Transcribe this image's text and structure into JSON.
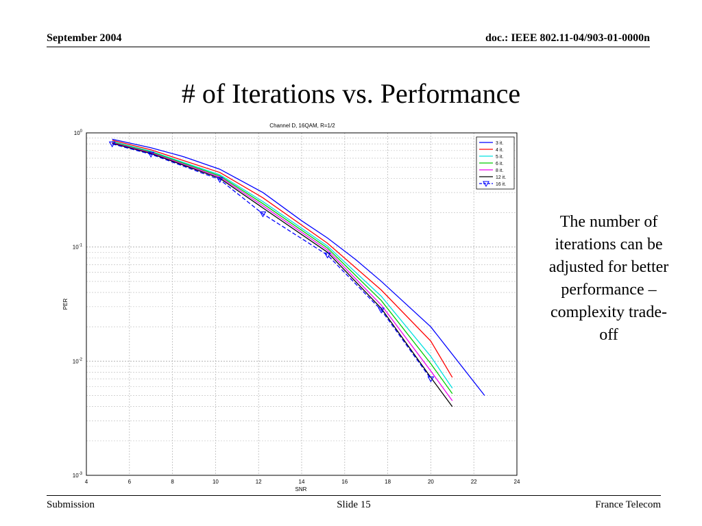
{
  "header": {
    "date": "September 2004",
    "doc": "doc.: IEEE 802.11-04/903-01-0000n"
  },
  "slide": {
    "title": "# of Iterations vs. Performance",
    "note": "The number of iterations can be adjusted for better performance – complexity trade-off"
  },
  "footer": {
    "left": "Submission",
    "center": "Slide 15",
    "right": "France Telecom"
  },
  "chart_data": {
    "type": "line",
    "title": "Channel D, 16QAM, R=1/2",
    "xlabel": "SNR",
    "ylabel": "PER",
    "xlim": [
      4,
      24
    ],
    "ylim": [
      0.001,
      1
    ],
    "xscale": "linear",
    "yscale": "log",
    "xticks": [
      4,
      6,
      8,
      10,
      12,
      14,
      16,
      18,
      20,
      22,
      24
    ],
    "yticks": [
      {
        "value": 1,
        "base": "10",
        "exp": "0"
      },
      {
        "value": 0.1,
        "base": "10",
        "exp": "-1"
      },
      {
        "value": 0.01,
        "base": "10",
        "exp": "-2"
      },
      {
        "value": 0.001,
        "base": "10",
        "exp": "-3"
      }
    ],
    "grid": true,
    "legend_position": "top-right",
    "series": [
      {
        "name": "3 it.",
        "color": "#0000ff",
        "style": "solid",
        "marker": "none",
        "x": [
          5.2,
          7,
          8.5,
          10.2,
          12.2,
          14,
          15.2,
          16.5,
          17.7,
          20,
          22.5
        ],
        "y": [
          0.88,
          0.74,
          0.62,
          0.48,
          0.3,
          0.17,
          0.12,
          0.078,
          0.05,
          0.02,
          0.005
        ]
      },
      {
        "name": "4 it.",
        "color": "#ff0000",
        "style": "solid",
        "marker": "none",
        "x": [
          5.2,
          7,
          10.2,
          12.2,
          15.2,
          17.7,
          20,
          21
        ],
        "y": [
          0.86,
          0.71,
          0.45,
          0.27,
          0.108,
          0.042,
          0.015,
          0.0072
        ]
      },
      {
        "name": "5 it.",
        "color": "#00e0e0",
        "style": "solid",
        "marker": "none",
        "x": [
          5.2,
          7,
          10.2,
          12.2,
          15.2,
          17.7,
          20,
          21
        ],
        "y": [
          0.84,
          0.69,
          0.43,
          0.25,
          0.102,
          0.037,
          0.011,
          0.0058
        ]
      },
      {
        "name": "6 it.",
        "color": "#00cc00",
        "style": "solid",
        "marker": "none",
        "x": [
          5.2,
          7,
          10.2,
          12.2,
          15.2,
          17.7,
          20,
          21
        ],
        "y": [
          0.83,
          0.68,
          0.42,
          0.24,
          0.098,
          0.034,
          0.0095,
          0.0052
        ]
      },
      {
        "name": "8 it.",
        "color": "#ee00ee",
        "style": "solid",
        "marker": "none",
        "x": [
          5.2,
          7,
          10.2,
          12.2,
          15.2,
          17.7,
          20,
          21
        ],
        "y": [
          0.82,
          0.67,
          0.41,
          0.23,
          0.094,
          0.031,
          0.0082,
          0.0045
        ]
      },
      {
        "name": "12 it.",
        "color": "#000000",
        "style": "solid",
        "marker": "none",
        "x": [
          5.2,
          7,
          10.2,
          12.2,
          15.2,
          17.7,
          20,
          21
        ],
        "y": [
          0.81,
          0.66,
          0.4,
          0.22,
          0.09,
          0.029,
          0.0072,
          0.004
        ]
      },
      {
        "name": "16 it.",
        "color": "#0000ff",
        "style": "dashed",
        "marker": "triangle-down",
        "x": [
          5.2,
          7,
          10.2,
          12.2,
          15.2,
          17.7,
          20
        ],
        "y": [
          0.8,
          0.65,
          0.39,
          0.195,
          0.085,
          0.028,
          0.007
        ]
      }
    ]
  }
}
